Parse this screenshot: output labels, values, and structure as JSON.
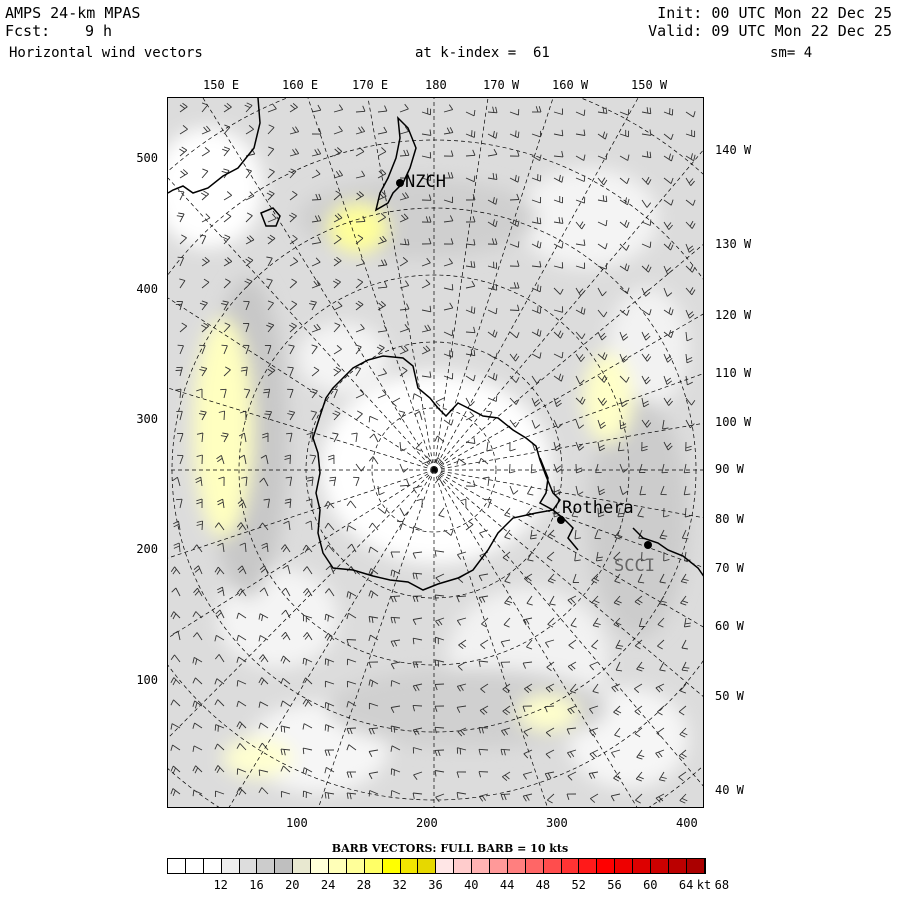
{
  "header": {
    "model": "AMPS 24-km MPAS",
    "fcst_label": "Fcst:",
    "fcst_value": "9 h",
    "field": "Horizontal wind vectors",
    "level": "at k-index =  61",
    "init": "Init: 00 UTC Mon 22 Dec 25",
    "valid": "Valid: 09 UTC Mon 22 Dec 25",
    "smooth": "sm= 4"
  },
  "map": {
    "top_lon_labels": [
      "150 E",
      "160 E",
      "170 E",
      "180",
      "170 W",
      "160 W",
      "150 W"
    ],
    "right_lon_labels": [
      "140 W",
      "130 W",
      "120 W",
      "110 W",
      "100 W",
      "90 W",
      "80 W",
      "70 W",
      "60 W",
      "50 W",
      "40 W"
    ],
    "left_y_ticks": [
      "500",
      "400",
      "300",
      "200",
      "100"
    ],
    "bottom_x_ticks": [
      "100",
      "200",
      "300",
      "400"
    ],
    "stations": [
      "NZCH",
      "Rothera",
      "SCCI"
    ]
  },
  "legend": {
    "caption": "BARB VECTORS:  FULL BARB = 10 kts",
    "levels": [
      "12",
      "16",
      "20",
      "24",
      "28",
      "32",
      "36",
      "40",
      "44",
      "48",
      "52",
      "56",
      "60",
      "64",
      "68"
    ],
    "unit": "kt",
    "colors": [
      "#ffffff",
      "#ffffff",
      "#ffffff",
      "#eeeeee",
      "#dddddd",
      "#cccccc",
      "#bfbfbf",
      "#e8e8d0",
      "#ffffd8",
      "#ffffb8",
      "#ffff99",
      "#ffff66",
      "#ffff00",
      "#f2e600",
      "#e6d800",
      "#ffe6e6",
      "#ffcccc",
      "#ffb3b3",
      "#ff9999",
      "#ff7f7f",
      "#ff6666",
      "#ff4d4d",
      "#ff3333",
      "#ff1a1a",
      "#ff0000",
      "#ee0000",
      "#dd0000",
      "#cc0000",
      "#bb0000",
      "#aa0000"
    ]
  }
}
